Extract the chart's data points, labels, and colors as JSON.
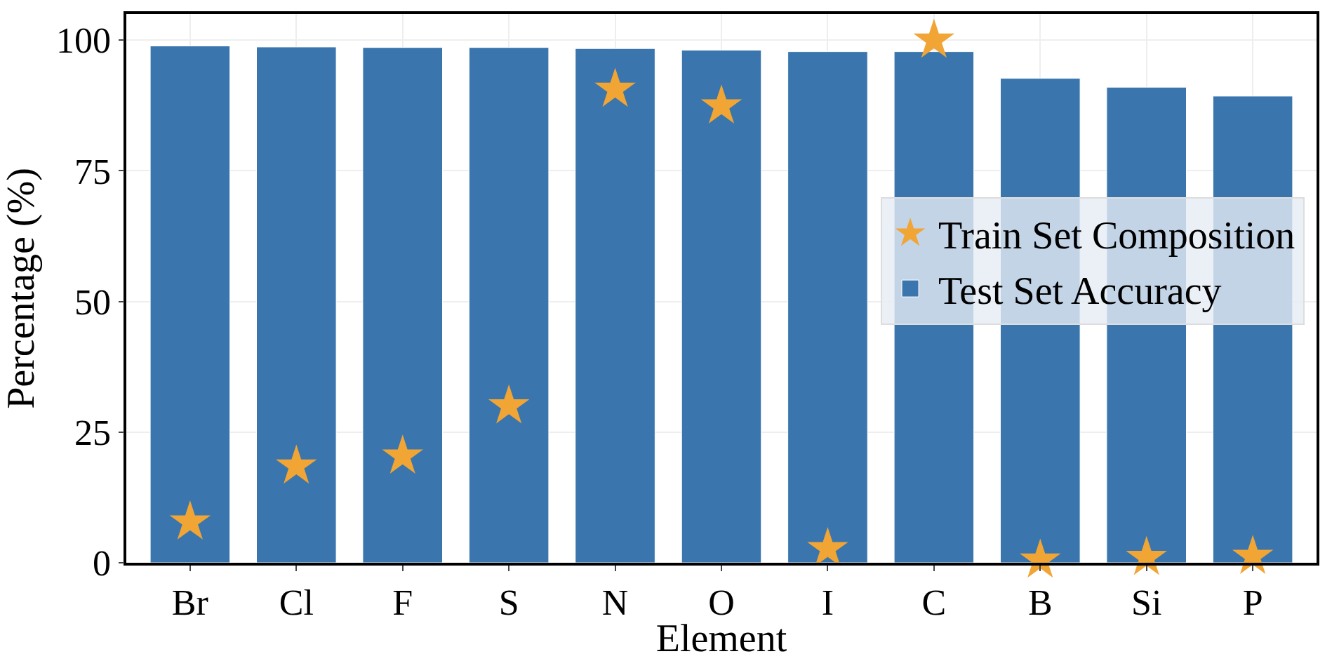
{
  "chart_data": {
    "type": "bar",
    "xlabel": "Element",
    "ylabel": "Percentage (%)",
    "categories": [
      "Br",
      "Cl",
      "F",
      "S",
      "N",
      "O",
      "I",
      "C",
      "B",
      "Si",
      "P"
    ],
    "series": [
      {
        "name": "Train Set Composition",
        "type": "scatter",
        "color": "#f0a535",
        "marker": "star",
        "x": [
          "Br",
          "Cl",
          "F",
          "S",
          "N",
          "O",
          "I",
          "C",
          "B",
          "Si",
          "P"
        ],
        "values": [
          7.8,
          18.5,
          20.4,
          30,
          90.6,
          87.4,
          2.7,
          100,
          0.5,
          1,
          1.2
        ]
      },
      {
        "name": "Test Set Accuracy",
        "color": "#3a75ae",
        "values": [
          98.9,
          98.7,
          98.6,
          98.6,
          98.4,
          98.1,
          97.8,
          97.8,
          92.7,
          91,
          89.3
        ]
      }
    ],
    "ylim": [
      0,
      105
    ],
    "yticks": [
      0,
      25,
      50,
      75,
      100
    ],
    "grid": true,
    "legend": "right"
  }
}
